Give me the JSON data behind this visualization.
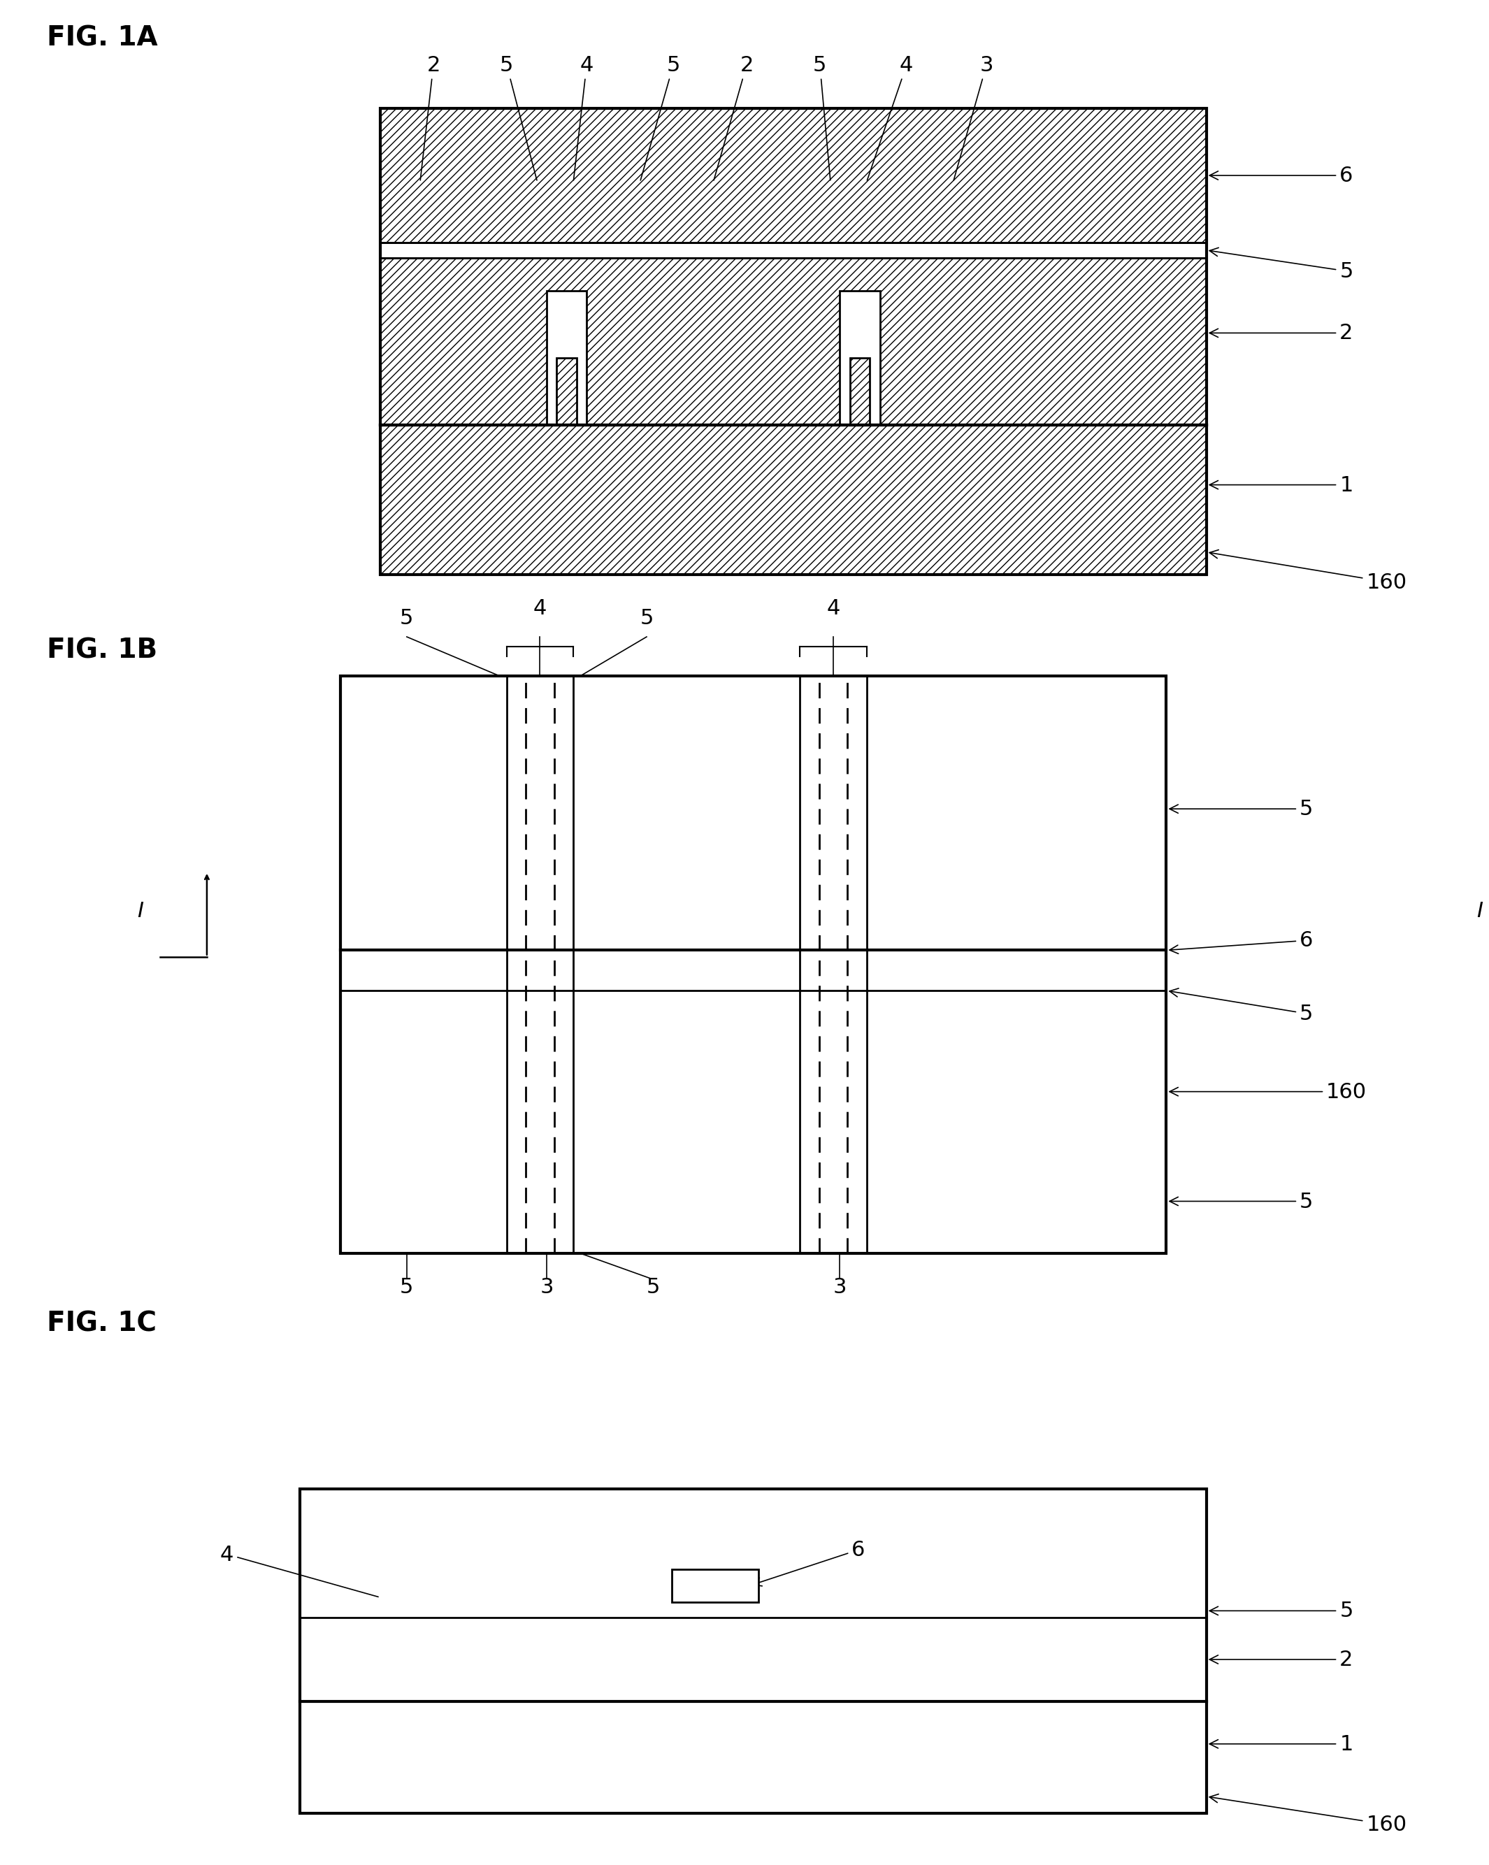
{
  "bg_color": "#ffffff",
  "line_color": "#000000",
  "fig_width": 20.72,
  "fig_height": 27.59,
  "fig_label_fontsize": 28,
  "anno_fontsize": 22,
  "fig1a_label": "FIG. 1A",
  "fig1b_label": "FIG. 1B",
  "fig1c_label": "FIG. 1C"
}
